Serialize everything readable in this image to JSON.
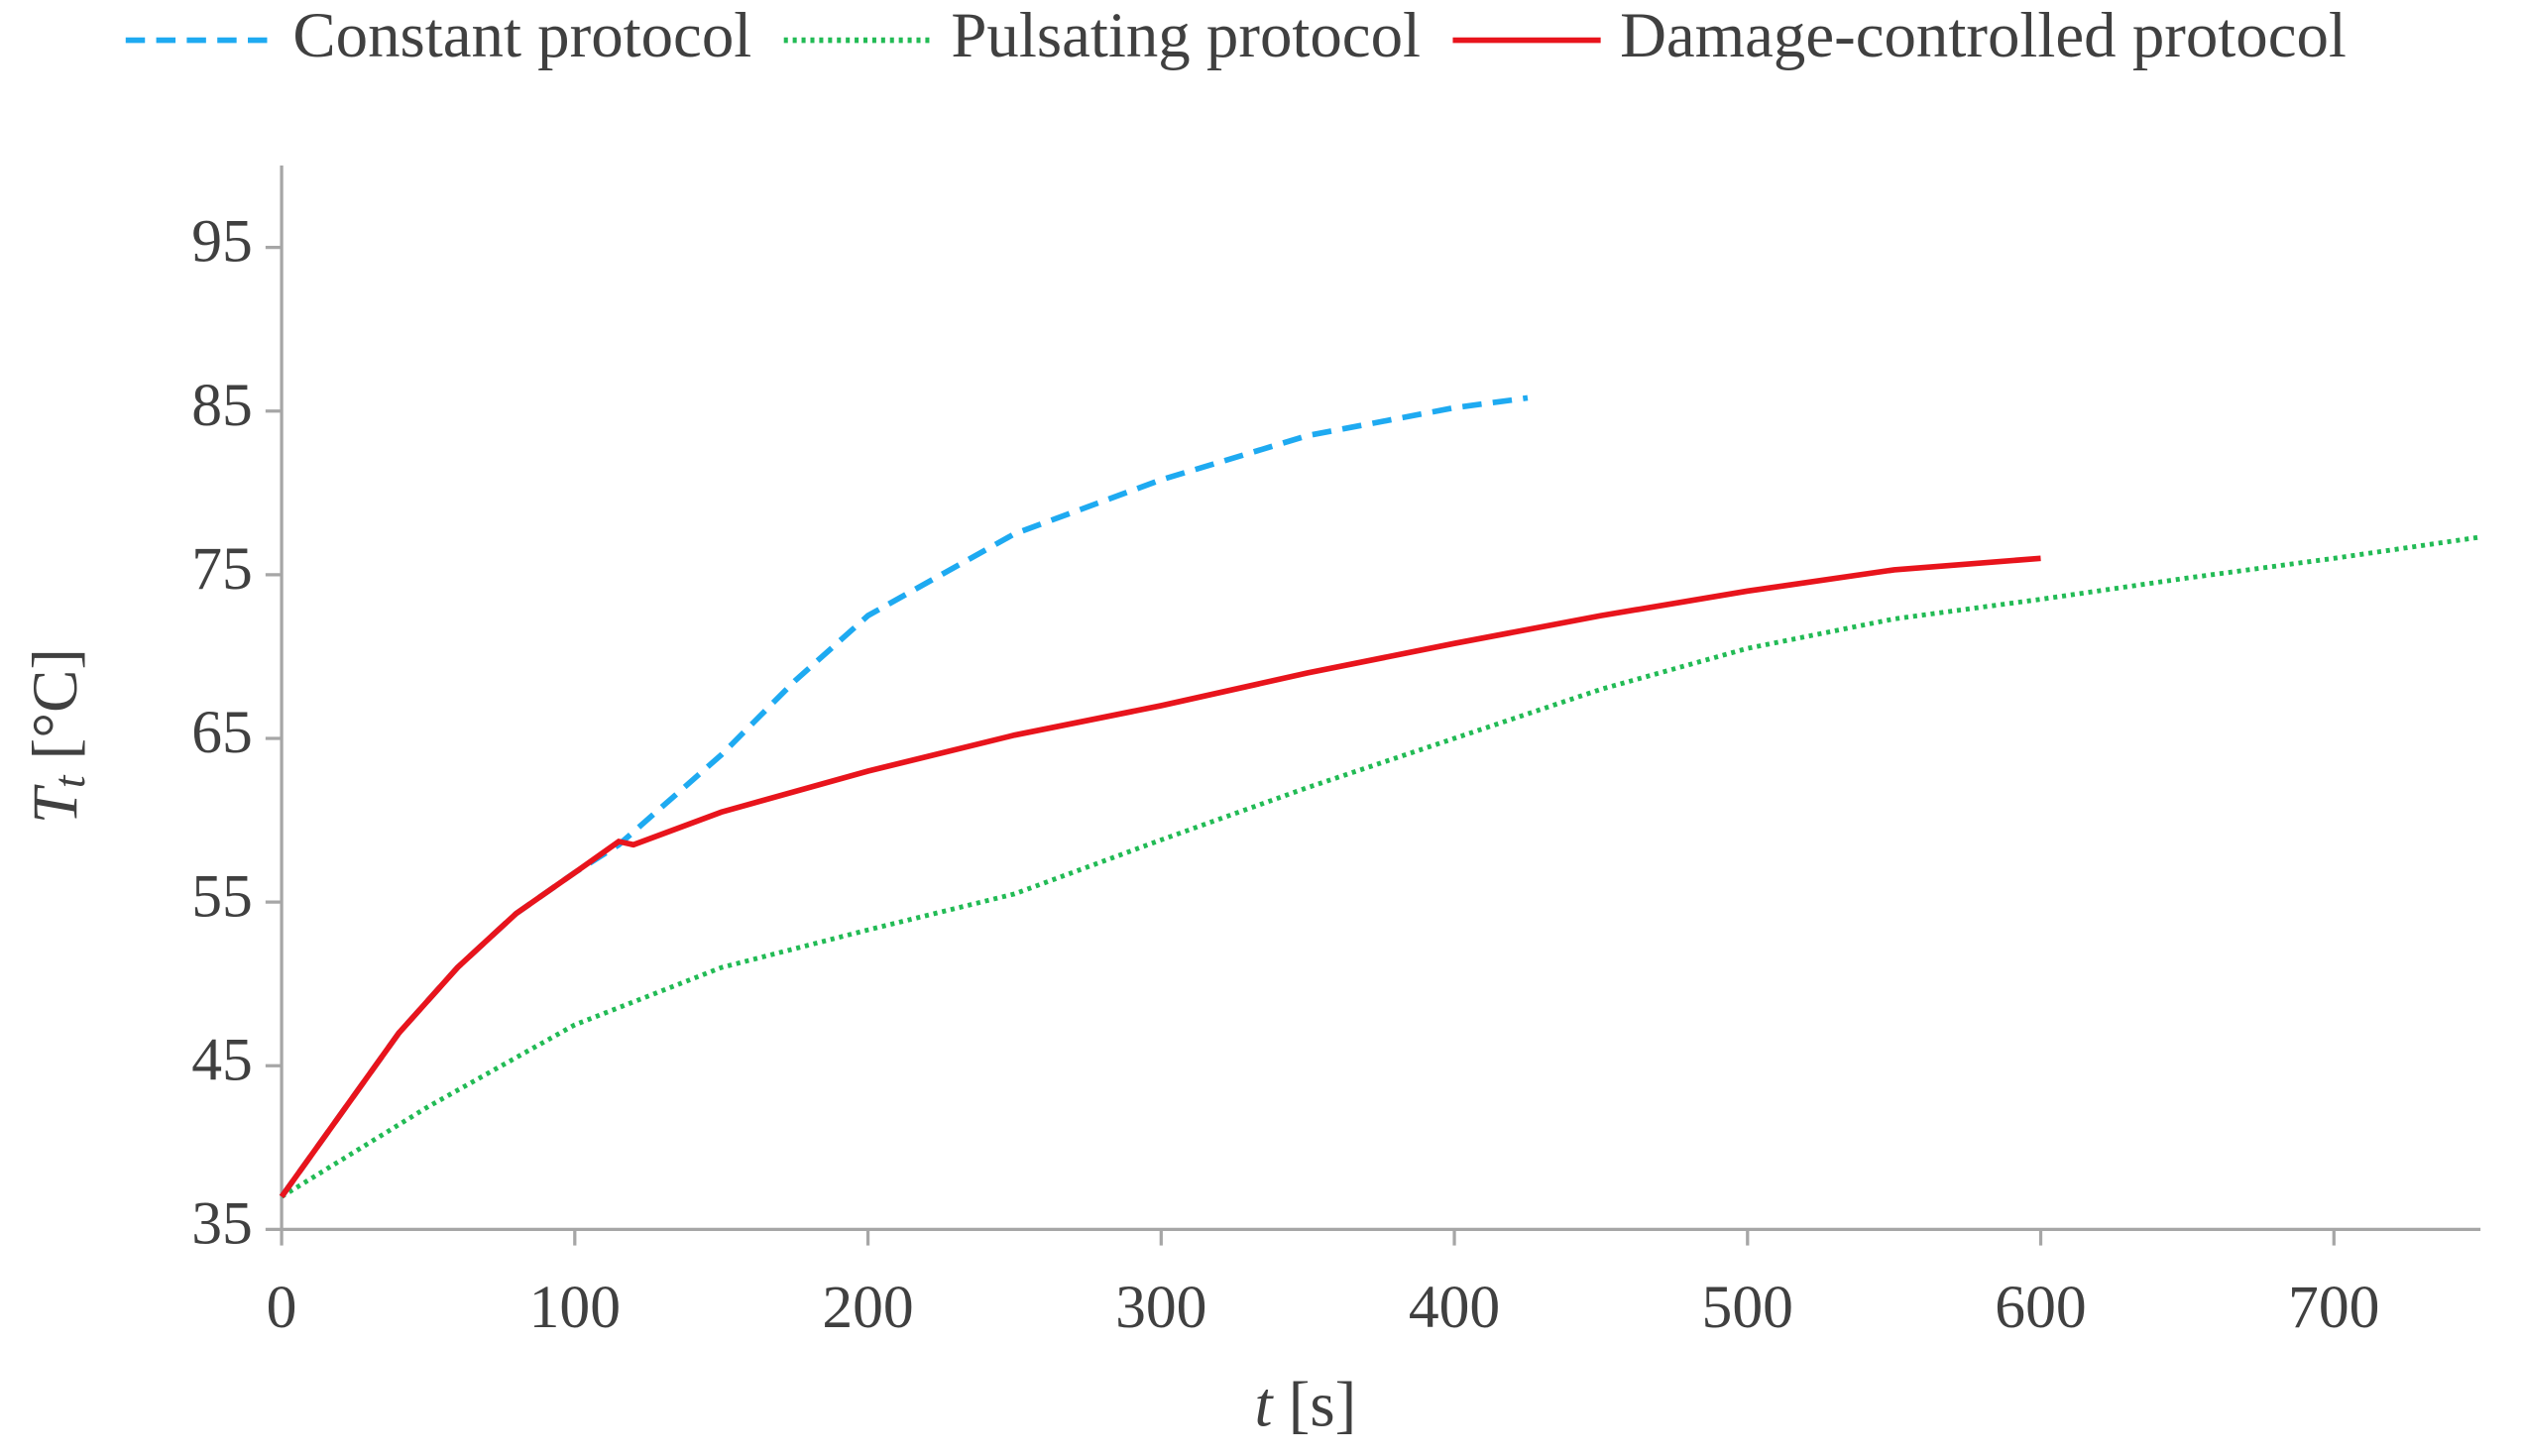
{
  "chart_data": {
    "type": "line",
    "xlabel": {
      "symbol": "t",
      "unit": "[s]"
    },
    "ylabel": {
      "symbol": "T",
      "subscript": "t",
      "unit": "[°C]"
    },
    "xlim": [
      0,
      750
    ],
    "ylim": [
      35,
      100
    ],
    "xticks": [
      0,
      100,
      200,
      300,
      400,
      500,
      600,
      700
    ],
    "yticks": [
      35,
      45,
      55,
      65,
      75,
      85,
      95
    ],
    "grid": false,
    "legend": "top",
    "series": [
      {
        "name": "Constant protocol",
        "color": "#1eaaf1",
        "dash": "dashed",
        "x": [
          0,
          20,
          40,
          60,
          80,
          100,
          115,
          150,
          175,
          200,
          250,
          300,
          350,
          400,
          425
        ],
        "values": [
          37,
          42,
          47,
          51,
          54.3,
          56.8,
          58.5,
          64,
          68.5,
          72.5,
          77.5,
          80.8,
          83.5,
          85.2,
          85.8
        ]
      },
      {
        "name": "Pulsating protocol",
        "color": "#22bb55",
        "dash": "dotted",
        "x": [
          0,
          50,
          100,
          150,
          200,
          250,
          300,
          350,
          400,
          450,
          500,
          550,
          600,
          650,
          700,
          750
        ],
        "values": [
          37,
          42.5,
          47.5,
          51,
          53.3,
          55.5,
          58.8,
          62,
          65,
          68,
          70.5,
          72.3,
          73.5,
          74.8,
          76,
          77.3
        ]
      },
      {
        "name": "Damage-controlled protocol",
        "color": "#e8141c",
        "dash": "solid",
        "x": [
          0,
          20,
          40,
          60,
          80,
          100,
          115,
          120,
          150,
          200,
          250,
          300,
          350,
          400,
          450,
          500,
          550,
          600
        ],
        "values": [
          37,
          42,
          47,
          51,
          54.3,
          56.8,
          58.7,
          58.5,
          60.5,
          63,
          65.2,
          67,
          69,
          70.8,
          72.5,
          74,
          75.3,
          76
        ]
      }
    ]
  }
}
